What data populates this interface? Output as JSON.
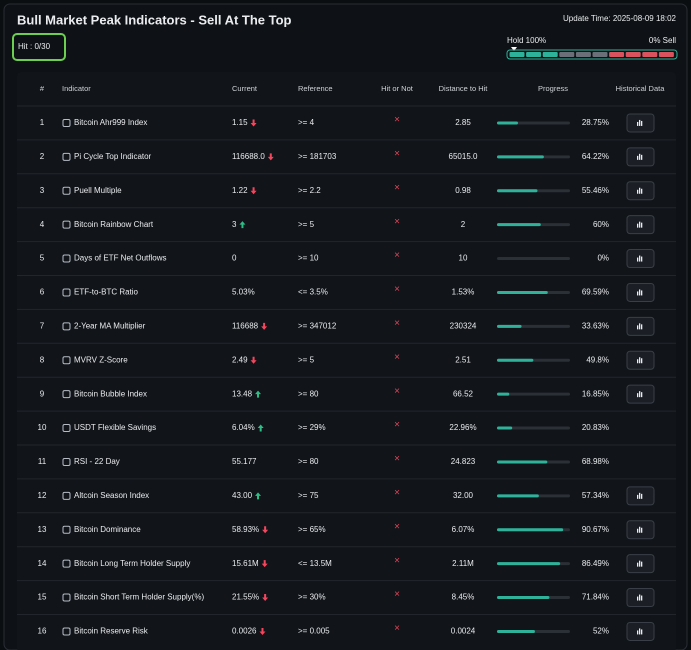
{
  "header": {
    "title": "Bull Market Peak Indicators - Sell At The Top",
    "update_time": "Update Time: 2025-08-09 18:02",
    "hit": "Hit : 0/30",
    "hold": "Hold 100%",
    "sell": "0% Sell"
  },
  "table": {
    "columns": [
      "#",
      "Indicator",
      "Current",
      "Reference",
      "Hit or Not",
      "Distance to Hit",
      "Progress",
      "Historical Data"
    ],
    "rows": [
      {
        "rank": "1",
        "indicator": "Bitcoin Ahr999 Index",
        "current": "1.15",
        "arrow": "down",
        "reference": ">= 4",
        "hit": "×",
        "distance": "2.85",
        "progress": {
          "value": 28.75,
          "label": "28.75%"
        },
        "historical": true
      },
      {
        "rank": "2",
        "indicator": "Pi Cycle Top Indicator",
        "current": "116688.0",
        "arrow": "down",
        "reference": ">= 181703",
        "hit": "×",
        "distance": "65015.0",
        "progress": {
          "value": 64.22,
          "label": "64.22%"
        },
        "historical": true
      },
      {
        "rank": "3",
        "indicator": "Puell Multiple",
        "current": "1.22",
        "arrow": "down",
        "reference": ">= 2.2",
        "hit": "×",
        "distance": "0.98",
        "progress": {
          "value": 55.46,
          "label": "55.46%"
        },
        "historical": true
      },
      {
        "rank": "4",
        "indicator": "Bitcoin Rainbow Chart",
        "current": "3",
        "arrow": "up",
        "reference": ">= 5",
        "hit": "×",
        "distance": "2",
        "progress": {
          "value": 60,
          "label": "60%"
        },
        "historical": true
      },
      {
        "rank": "5",
        "indicator": "Days of ETF Net Outflows",
        "current": "0",
        "reference": ">= 10",
        "hit": "×",
        "distance": "10",
        "progress": {
          "value": 0,
          "label": "0%"
        },
        "historical": true
      },
      {
        "rank": "6",
        "indicator": "ETF-to-BTC Ratio",
        "current": "5.03%",
        "reference": "<= 3.5%",
        "hit": "×",
        "distance": "1.53%",
        "progress": {
          "value": 69.59,
          "label": "69.59%"
        },
        "historical": true
      },
      {
        "rank": "7",
        "indicator": "2-Year MA Multiplier",
        "current": "116688",
        "arrow": "down",
        "reference": ">= 347012",
        "hit": "×",
        "distance": "230324",
        "progress": {
          "value": 33.63,
          "label": "33.63%"
        },
        "historical": true
      },
      {
        "rank": "8",
        "indicator": "MVRV Z-Score",
        "current": "2.49",
        "arrow": "down",
        "reference": ">= 5",
        "hit": "×",
        "distance": "2.51",
        "progress": {
          "value": 49.8,
          "label": "49.8%"
        },
        "historical": true
      },
      {
        "rank": "9",
        "indicator": "Bitcoin Bubble Index",
        "current": "13.48",
        "arrow": "up",
        "reference": ">= 80",
        "hit": "×",
        "distance": "66.52",
        "progress": {
          "value": 16.85,
          "label": "16.85%"
        },
        "historical": true
      },
      {
        "rank": "10",
        "indicator": "USDT Flexible Savings",
        "current": "6.04%",
        "arrow": "up",
        "reference": ">= 29%",
        "hit": "×",
        "distance": "22.96%",
        "progress": {
          "value": 20.83,
          "label": "20.83%"
        },
        "historical": false
      },
      {
        "rank": "11",
        "indicator": "RSI - 22 Day",
        "current": "55.177",
        "reference": ">= 80",
        "hit": "×",
        "distance": "24.823",
        "progress": {
          "value": 68.98,
          "label": "68.98%"
        },
        "historical": false
      },
      {
        "rank": "12",
        "indicator": "Altcoin Season Index",
        "current": "43.00",
        "arrow": "up",
        "reference": ">= 75",
        "hit": "×",
        "distance": "32.00",
        "progress": {
          "value": 57.34,
          "label": "57.34%"
        },
        "historical": true
      },
      {
        "rank": "13",
        "indicator": "Bitcoin Dominance",
        "current": "58.93%",
        "arrow": "down",
        "reference": ">= 65%",
        "hit": "×",
        "distance": "6.07%",
        "progress": {
          "value": 90.67,
          "label": "90.67%"
        },
        "historical": true
      },
      {
        "rank": "14",
        "indicator": "Bitcoin Long Term Holder Supply",
        "current": "15.61M",
        "arrow": "down",
        "reference": "<= 13.5M",
        "hit": "×",
        "distance": "2.11M",
        "progress": {
          "value": 86.49,
          "label": "86.49%"
        },
        "historical": true
      },
      {
        "rank": "15",
        "indicator": "Bitcoin Short Term Holder Supply(%)",
        "current": "21.55%",
        "arrow": "down",
        "reference": ">= 30%",
        "hit": "×",
        "distance": "8.45%",
        "progress": {
          "value": 71.84,
          "label": "71.84%"
        },
        "historical": true
      },
      {
        "rank": "16",
        "indicator": "Bitcoin Reserve Risk",
        "current": "0.0026",
        "arrow": "down",
        "reference": ">= 0.005",
        "hit": "×",
        "distance": "0.0024",
        "progress": {
          "value": 52,
          "label": "52%"
        },
        "historical": true
      }
    ]
  }
}
